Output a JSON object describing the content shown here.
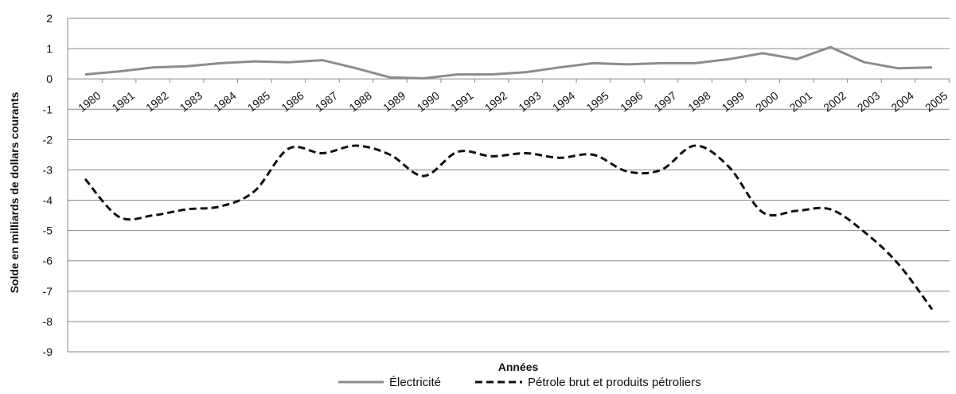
{
  "chart_data": {
    "type": "line",
    "title": "",
    "xlabel": "Années",
    "ylabel": "Solde en milliards de dollars courants",
    "ylim": [
      -9,
      2
    ],
    "yticks": [
      "2",
      "1",
      "0",
      "-1",
      "-2",
      "-3",
      "-4",
      "-5",
      "-6",
      "-7",
      "-8",
      "-9"
    ],
    "grid": true,
    "legend_position": "bottom",
    "categories": [
      "1980",
      "1981",
      "1982",
      "1983",
      "1984",
      "1985",
      "1986",
      "1987",
      "1988",
      "1989",
      "1990",
      "1991",
      "1992",
      "1993",
      "1994",
      "1995",
      "1996",
      "1997",
      "1998",
      "1999",
      "2000",
      "2001",
      "2002",
      "2003",
      "2004",
      "2005"
    ],
    "series": [
      {
        "name": "Électricité",
        "style": "solid",
        "color": "#8c8c8c",
        "values": [
          0.15,
          0.25,
          0.38,
          0.42,
          0.52,
          0.58,
          0.55,
          0.62,
          0.35,
          0.05,
          0.02,
          0.15,
          0.15,
          0.22,
          0.38,
          0.52,
          0.48,
          0.52,
          0.52,
          0.65,
          0.85,
          0.65,
          1.05,
          0.55,
          0.35,
          0.38
        ]
      },
      {
        "name": "Pétrole brut et produits pétroliers",
        "style": "dashed",
        "color": "#111111",
        "values": [
          -3.3,
          -4.55,
          -4.5,
          -4.3,
          -4.2,
          -3.7,
          -2.3,
          -2.45,
          -2.2,
          -2.5,
          -3.2,
          -2.4,
          -2.55,
          -2.45,
          -2.6,
          -2.5,
          -3.05,
          -3.0,
          -2.2,
          -2.9,
          -4.4,
          -4.35,
          -4.3,
          -5.05,
          -6.1,
          -7.6
        ]
      }
    ]
  }
}
